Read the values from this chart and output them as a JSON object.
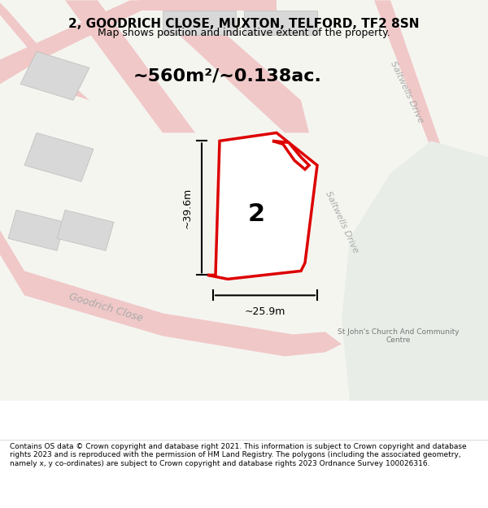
{
  "title": "2, GOODRICH CLOSE, MUXTON, TELFORD, TF2 8SN",
  "subtitle": "Map shows position and indicative extent of the property.",
  "area_label": "~560m²/~0.138ac.",
  "number_label": "2",
  "dim_height": "~39.6m",
  "dim_width": "~25.9m",
  "road_label_1": "Goodrich Close",
  "road_label_2": "Saltwells Drive",
  "road_label_3": "Saltwells Drive",
  "other_label": "St John's Church And Community\nCentre",
  "bg_color": "#f5f5f0",
  "map_bg": "#f5f5f0",
  "road_fill": "#e8e8e8",
  "building_fill": "#d8d8d8",
  "property_outline_color": "#dd0000",
  "property_fill": "white",
  "footer_text": "Contains OS data © Crown copyright and database right 2021. This information is subject to Crown copyright and database rights 2023 and is reproduced with the permission of HM Land Registry. The polygons (including the associated geometry, namely x, y co-ordinates) are subject to Crown copyright and database rights 2023 Ordnance Survey 100026316.",
  "road_color": "#e8a0a0",
  "road_stroke": "#cc8888"
}
